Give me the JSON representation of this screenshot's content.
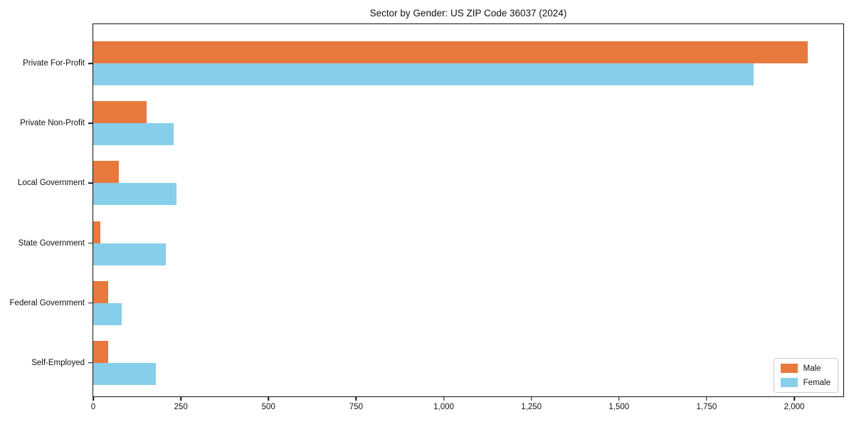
{
  "title": "Sector by Gender: US ZIP Code 36037 (2024)",
  "colors": {
    "male": "#e8793d",
    "female": "#87ceeb",
    "axis": "#111111",
    "legend_border": "#cccccc",
    "background": "#ffffff"
  },
  "chart_data": {
    "type": "bar",
    "orientation": "horizontal",
    "title": "Sector by Gender: US ZIP Code 36037 (2024)",
    "categories": [
      "Private For-Profit",
      "Private Non-Profit",
      "Local Government",
      "State Government",
      "Federal Government",
      "Self-Employed"
    ],
    "series": [
      {
        "name": "Male",
        "color": "#e8793d",
        "values": [
          2038,
          153,
          74,
          21,
          43,
          42
        ]
      },
      {
        "name": "Female",
        "color": "#87ceeb",
        "values": [
          1884,
          230,
          238,
          207,
          81,
          179
        ]
      }
    ],
    "xlabel": "",
    "ylabel": "",
    "xlim": [
      0,
      2140
    ],
    "x_ticks": [
      0,
      250,
      500,
      750,
      1000,
      1250,
      1500,
      1750,
      2000
    ],
    "x_tick_labels": [
      "0",
      "250",
      "500",
      "750",
      "1,000",
      "1,250",
      "1,500",
      "1,750",
      "2,000"
    ],
    "grid": false,
    "legend_position": "lower right"
  },
  "legend": {
    "items": [
      {
        "label": "Male",
        "color": "#e8793d"
      },
      {
        "label": "Female",
        "color": "#87ceeb"
      }
    ]
  }
}
